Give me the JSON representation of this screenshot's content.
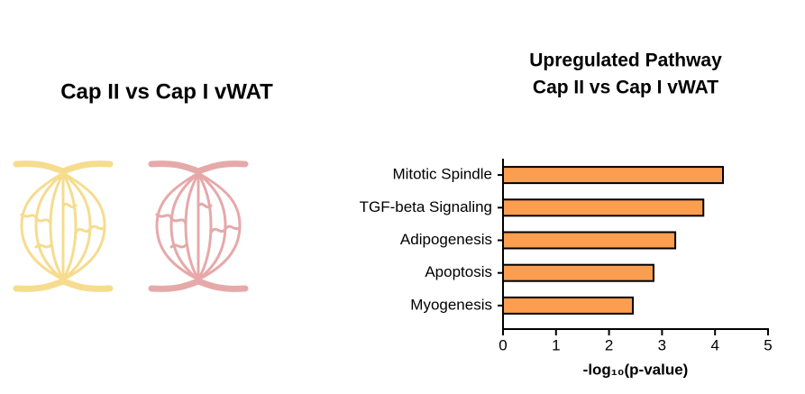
{
  "figure_title": "Cap II vs Cap I vWAT",
  "chart_data": {
    "type": "bar",
    "orientation": "horizontal",
    "title": "Upregulated Pathway",
    "subtitle": "Cap II vs Cap I vWAT",
    "x_label": "-log₁₀(p-value)",
    "categories": [
      "Mitotic Spindle",
      "TGF-beta Signaling",
      "Adipogenesis",
      "Apoptosis",
      "Myogenesis"
    ],
    "values": [
      4.15,
      3.78,
      3.25,
      2.84,
      2.45
    ],
    "color": "#fb9e4f",
    "xlim": [
      0,
      5
    ],
    "xticks": [
      0,
      1,
      2,
      3,
      4,
      5
    ]
  }
}
